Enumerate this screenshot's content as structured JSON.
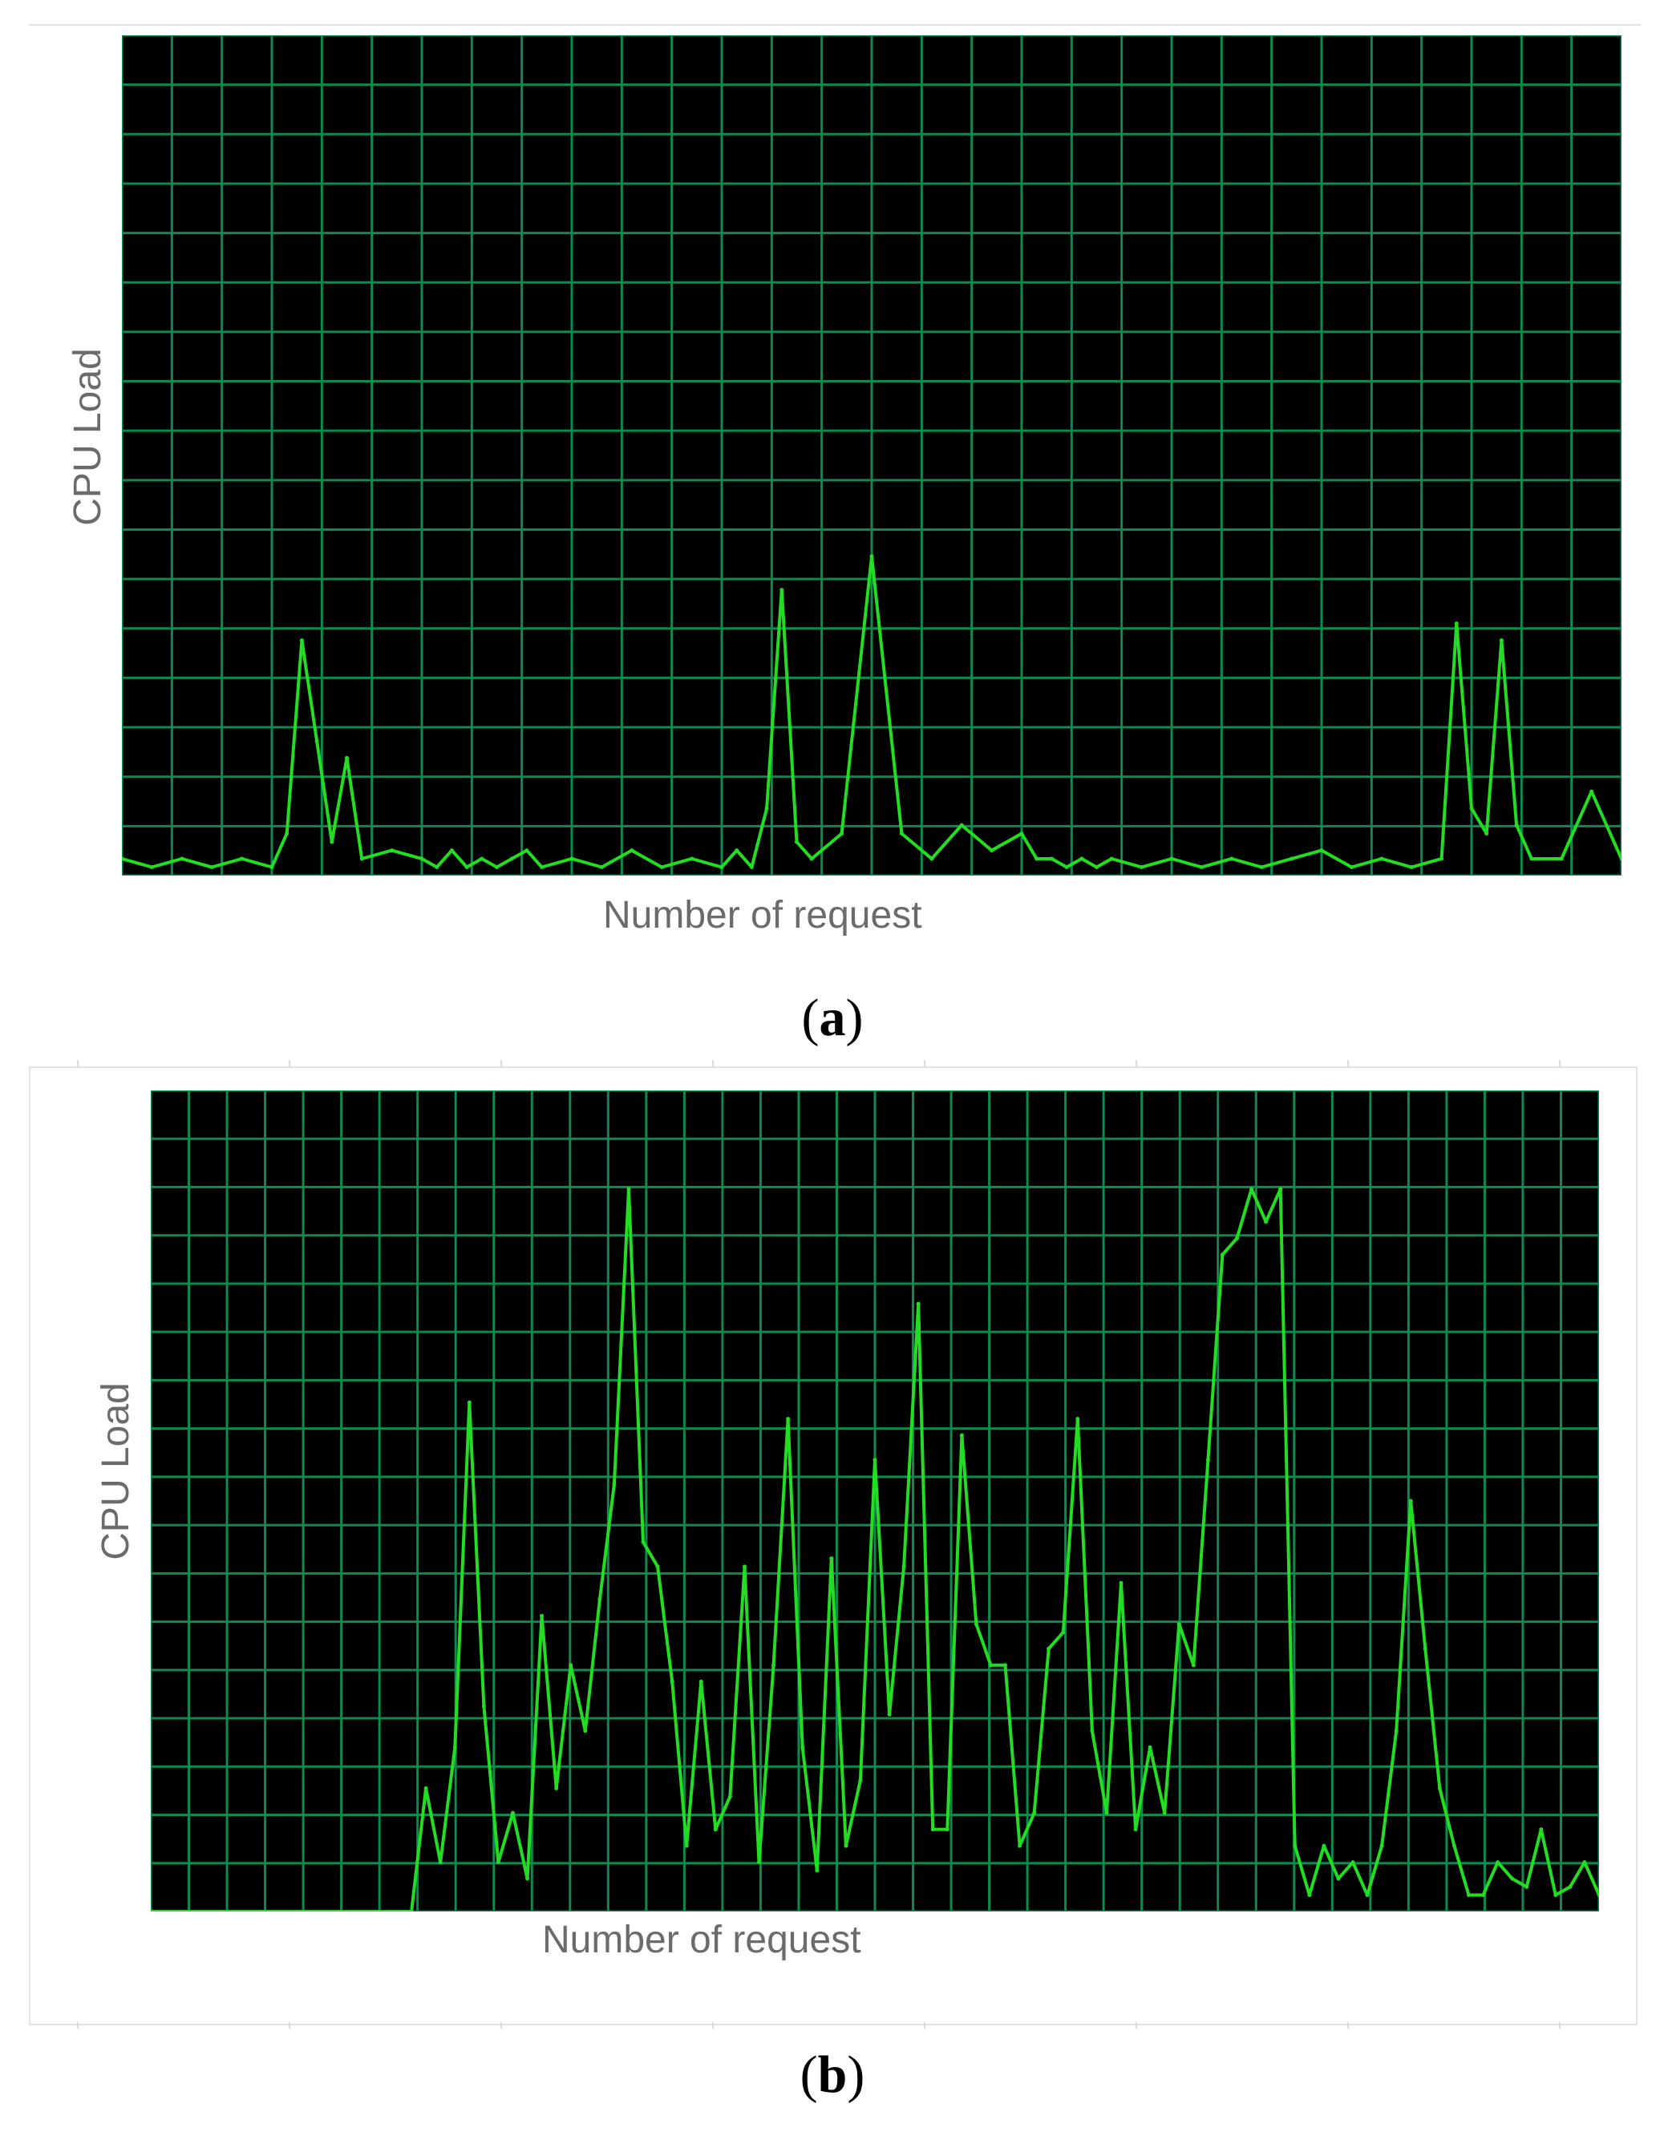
{
  "chart_data": [
    {
      "type": "line",
      "panel_label": "a",
      "xlabel": "Number of request",
      "ylabel": "CPU Load",
      "ylim": [
        0,
        100
      ],
      "grid": true,
      "colors": {
        "background": "#000000",
        "grid": "#0e8a4f",
        "line": "#22dd22"
      },
      "series": [
        {
          "x": [
            0,
            2,
            4,
            6,
            8,
            10,
            11,
            12,
            13,
            14,
            15,
            16,
            18,
            20,
            21,
            22,
            23,
            24,
            25,
            26,
            27,
            28,
            30,
            32,
            34,
            36,
            38,
            40,
            41,
            42,
            43,
            44,
            45,
            46,
            48,
            50,
            52,
            54,
            56,
            58,
            60,
            61,
            62,
            63,
            64,
            65,
            66,
            68,
            70,
            72,
            74,
            76,
            78,
            80,
            82,
            84,
            86,
            88,
            89,
            90,
            91,
            92,
            93,
            94,
            96,
            98,
            100
          ],
          "y": [
            2,
            1,
            2,
            1,
            2,
            1,
            5,
            28,
            16,
            4,
            14,
            2,
            3,
            2,
            1,
            3,
            1,
            2,
            1,
            2,
            3,
            1,
            2,
            1,
            3,
            1,
            2,
            1,
            3,
            1,
            8,
            34,
            4,
            2,
            5,
            38,
            5,
            2,
            6,
            3,
            5,
            2,
            2,
            1,
            2,
            1,
            2,
            1,
            2,
            1,
            2,
            1,
            2,
            3,
            1,
            2,
            1,
            2,
            30,
            8,
            5,
            28,
            6,
            2,
            2,
            10,
            2
          ]
        }
      ]
    },
    {
      "type": "line",
      "panel_label": "b",
      "xlabel": "Number of request",
      "ylabel": "CPU Load",
      "ylim": [
        0,
        100
      ],
      "grid": true,
      "colors": {
        "background": "#000000",
        "grid": "#0e8a4f",
        "line": "#22dd22"
      },
      "series": [
        {
          "x": [
            0,
            18,
            19,
            20,
            21,
            22,
            23,
            24,
            25,
            26,
            27,
            28,
            29,
            30,
            31,
            32,
            33,
            34,
            35,
            36,
            37,
            38,
            39,
            40,
            41,
            42,
            43,
            44,
            45,
            46,
            47,
            48,
            49,
            50,
            51,
            52,
            53,
            54,
            55,
            56,
            57,
            58,
            59,
            60,
            61,
            62,
            63,
            64,
            65,
            66,
            67,
            68,
            69,
            70,
            71,
            72,
            73,
            74,
            75,
            76,
            77,
            78,
            79,
            80,
            81,
            82,
            83,
            84,
            85,
            86,
            87,
            88,
            89,
            90,
            91,
            92,
            93,
            94,
            95,
            96,
            97,
            98,
            99,
            100
          ],
          "y": [
            0,
            0,
            15,
            6,
            20,
            62,
            25,
            6,
            12,
            4,
            36,
            15,
            30,
            22,
            38,
            52,
            88,
            45,
            42,
            28,
            8,
            28,
            10,
            14,
            42,
            6,
            30,
            60,
            20,
            5,
            43,
            8,
            16,
            55,
            24,
            42,
            74,
            10,
            10,
            58,
            35,
            30,
            30,
            8,
            12,
            32,
            34,
            60,
            22,
            12,
            40,
            10,
            20,
            12,
            35,
            30,
            55,
            80,
            82,
            88,
            84,
            88,
            8,
            2,
            8,
            4,
            6,
            2,
            8,
            22,
            50,
            32,
            15,
            8,
            2,
            2,
            6,
            4,
            3,
            10,
            2,
            3,
            6,
            2
          ]
        }
      ]
    }
  ]
}
